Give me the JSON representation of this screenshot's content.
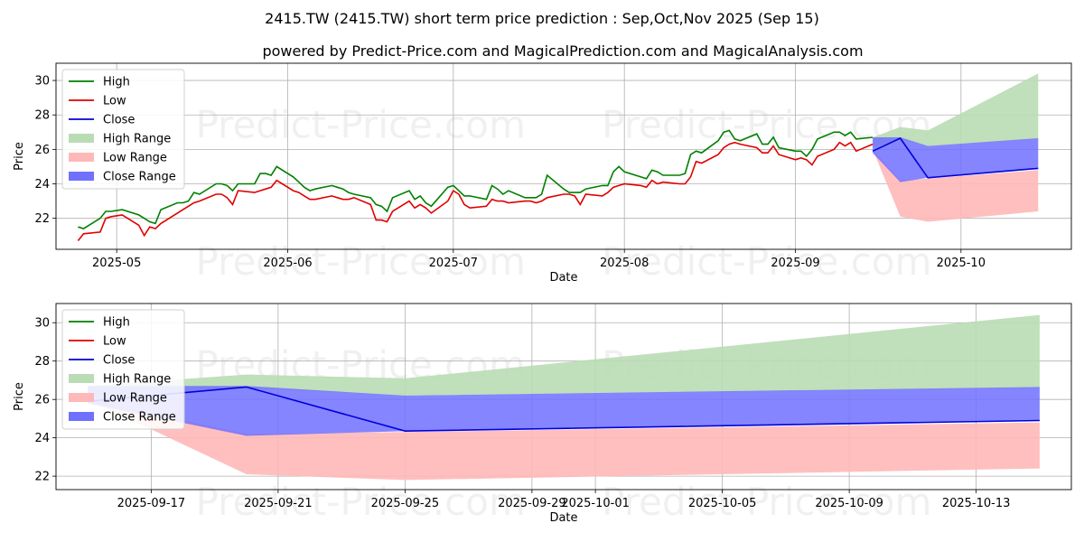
{
  "title": "2415.TW (2415.TW) short term price prediction : Sep,Oct,Nov 2025 (Sep 15)",
  "subtitle": "powered by Predict-Price.com and MagicalPrediction.com and MagicalAnalysis.com",
  "watermark": "Predict-Price.com",
  "colors": {
    "high": "#008000",
    "low": "#e00000",
    "close": "#0000dd",
    "high_range": "#b9dcb4",
    "low_range": "#ffb8b8",
    "close_range": "#7070ff",
    "grid": "#b0b0b0"
  },
  "chart_data": [
    {
      "type": "line",
      "xlabel": "Date",
      "ylabel": "Price",
      "grid": true,
      "legend_position": "top-left",
      "xlim": [
        "2025-04-20",
        "2025-10-21"
      ],
      "ylim": [
        20.2,
        31.0
      ],
      "yticks": [
        22,
        24,
        26,
        28,
        30
      ],
      "xticks": [
        "2025-05",
        "2025-06",
        "2025-07",
        "2025-08",
        "2025-09",
        "2025-10"
      ],
      "legend": [
        "High",
        "Low",
        "Close",
        "High Range",
        "Low Range",
        "Close Range"
      ],
      "history": {
        "dates": [
          "2025-04-24",
          "2025-04-25",
          "2025-04-28",
          "2025-04-29",
          "2025-04-30",
          "2025-05-02",
          "2025-05-05",
          "2025-05-06",
          "2025-05-07",
          "2025-05-08",
          "2025-05-09",
          "2025-05-12",
          "2025-05-13",
          "2025-05-14",
          "2025-05-15",
          "2025-05-16",
          "2025-05-19",
          "2025-05-20",
          "2025-05-21",
          "2025-05-22",
          "2025-05-23",
          "2025-05-26",
          "2025-05-27",
          "2025-05-28",
          "2025-05-29",
          "2025-05-30",
          "2025-06-02",
          "2025-06-03",
          "2025-06-04",
          "2025-06-05",
          "2025-06-06",
          "2025-06-09",
          "2025-06-10",
          "2025-06-11",
          "2025-06-12",
          "2025-06-13",
          "2025-06-16",
          "2025-06-17",
          "2025-06-18",
          "2025-06-19",
          "2025-06-20",
          "2025-06-23",
          "2025-06-24",
          "2025-06-25",
          "2025-06-26",
          "2025-06-27",
          "2025-06-30",
          "2025-07-01",
          "2025-07-02",
          "2025-07-03",
          "2025-07-04",
          "2025-07-07",
          "2025-07-08",
          "2025-07-09",
          "2025-07-10",
          "2025-07-11",
          "2025-07-14",
          "2025-07-15",
          "2025-07-16",
          "2025-07-17",
          "2025-07-18",
          "2025-07-21",
          "2025-07-22",
          "2025-07-23",
          "2025-07-24",
          "2025-07-25",
          "2025-07-28",
          "2025-07-29",
          "2025-07-30",
          "2025-07-31",
          "2025-08-01",
          "2025-08-04",
          "2025-08-05",
          "2025-08-06",
          "2025-08-07",
          "2025-08-08",
          "2025-08-11",
          "2025-08-12",
          "2025-08-13",
          "2025-08-14",
          "2025-08-15",
          "2025-08-18",
          "2025-08-19",
          "2025-08-20",
          "2025-08-21",
          "2025-08-22",
          "2025-08-25",
          "2025-08-26",
          "2025-08-27",
          "2025-08-28",
          "2025-08-29",
          "2025-09-01",
          "2025-09-02",
          "2025-09-03",
          "2025-09-04",
          "2025-09-05",
          "2025-09-08",
          "2025-09-09",
          "2025-09-10",
          "2025-09-11",
          "2025-09-12",
          "2025-09-15"
        ],
        "high": [
          21.5,
          21.4,
          22.0,
          22.4,
          22.4,
          22.5,
          22.2,
          22.0,
          21.8,
          21.7,
          22.5,
          22.9,
          22.9,
          23.0,
          23.5,
          23.4,
          24.0,
          24.0,
          23.9,
          23.6,
          24.0,
          24.0,
          24.6,
          24.6,
          24.5,
          25.0,
          24.4,
          24.1,
          23.8,
          23.6,
          23.7,
          23.9,
          23.8,
          23.7,
          23.5,
          23.4,
          23.2,
          22.8,
          22.7,
          22.4,
          23.2,
          23.6,
          23.1,
          23.3,
          22.9,
          22.7,
          23.8,
          23.9,
          23.6,
          23.3,
          23.3,
          23.1,
          23.9,
          23.7,
          23.4,
          23.6,
          23.2,
          23.2,
          23.2,
          23.4,
          24.5,
          23.7,
          23.5,
          23.5,
          23.5,
          23.7,
          23.9,
          23.9,
          24.7,
          25.0,
          24.7,
          24.4,
          24.3,
          24.8,
          24.7,
          24.5,
          24.5,
          24.6,
          25.7,
          25.9,
          25.8,
          26.5,
          27.0,
          27.1,
          26.6,
          26.5,
          26.9,
          26.3,
          26.3,
          26.7,
          26.1,
          25.9,
          25.9,
          25.6,
          26.0,
          26.6,
          27.0,
          27.0,
          26.8,
          27.0,
          26.6,
          26.7
        ],
        "low": [
          20.7,
          21.1,
          21.2,
          22.0,
          22.1,
          22.2,
          21.6,
          21.0,
          21.5,
          21.4,
          21.7,
          22.3,
          22.5,
          22.7,
          22.9,
          23.0,
          23.4,
          23.4,
          23.2,
          22.8,
          23.6,
          23.5,
          23.6,
          23.7,
          23.8,
          24.2,
          23.6,
          23.5,
          23.3,
          23.1,
          23.1,
          23.3,
          23.2,
          23.1,
          23.1,
          23.2,
          22.8,
          21.9,
          21.9,
          21.8,
          22.4,
          23.0,
          22.6,
          22.8,
          22.6,
          22.3,
          23.0,
          23.6,
          23.4,
          22.8,
          22.6,
          22.7,
          23.1,
          23.0,
          23.0,
          22.9,
          23.0,
          23.0,
          22.9,
          23.0,
          23.2,
          23.4,
          23.4,
          23.3,
          22.8,
          23.4,
          23.3,
          23.5,
          23.8,
          23.9,
          24.0,
          23.9,
          23.8,
          24.2,
          24.0,
          24.1,
          24.0,
          24.0,
          24.4,
          25.3,
          25.2,
          25.7,
          26.1,
          26.3,
          26.4,
          26.3,
          26.1,
          25.8,
          25.8,
          26.2,
          25.7,
          25.4,
          25.5,
          25.4,
          25.1,
          25.6,
          26.0,
          26.4,
          26.2,
          26.4,
          25.9,
          26.3
        ],
        "close_start": {
          "date": "2025-09-15",
          "value": 25.9
        }
      },
      "forecast": {
        "dates": [
          "2025-09-15",
          "2025-09-20",
          "2025-09-25",
          "2025-10-15"
        ],
        "close": [
          25.9,
          26.65,
          24.35,
          24.9
        ],
        "high_range_upper": [
          26.7,
          27.3,
          27.1,
          30.4
        ],
        "high_range_lower": [
          26.1,
          26.6,
          26.2,
          26.6
        ],
        "low_range_upper": [
          26.0,
          24.2,
          24.3,
          24.8
        ],
        "low_range_lower": [
          26.0,
          22.1,
          21.8,
          22.4
        ],
        "close_range_upper": [
          26.7,
          26.7,
          26.2,
          26.65
        ],
        "close_range_lower": [
          25.8,
          24.1,
          24.35,
          24.9
        ]
      }
    },
    {
      "type": "line",
      "xlabel": "Date",
      "ylabel": "Price",
      "grid": true,
      "legend_position": "top-left",
      "xlim": [
        "2025-09-14",
        "2025-10-16"
      ],
      "ylim": [
        21.3,
        31.0
      ],
      "yticks": [
        22,
        24,
        26,
        28,
        30
      ],
      "xticks": [
        "2025-09-17",
        "2025-09-21",
        "2025-09-25",
        "2025-09-29",
        "2025-10-01",
        "2025-10-05",
        "2025-10-09",
        "2025-10-13"
      ],
      "legend": [
        "High",
        "Low",
        "Close",
        "High Range",
        "Low Range",
        "Close Range"
      ]
    }
  ]
}
